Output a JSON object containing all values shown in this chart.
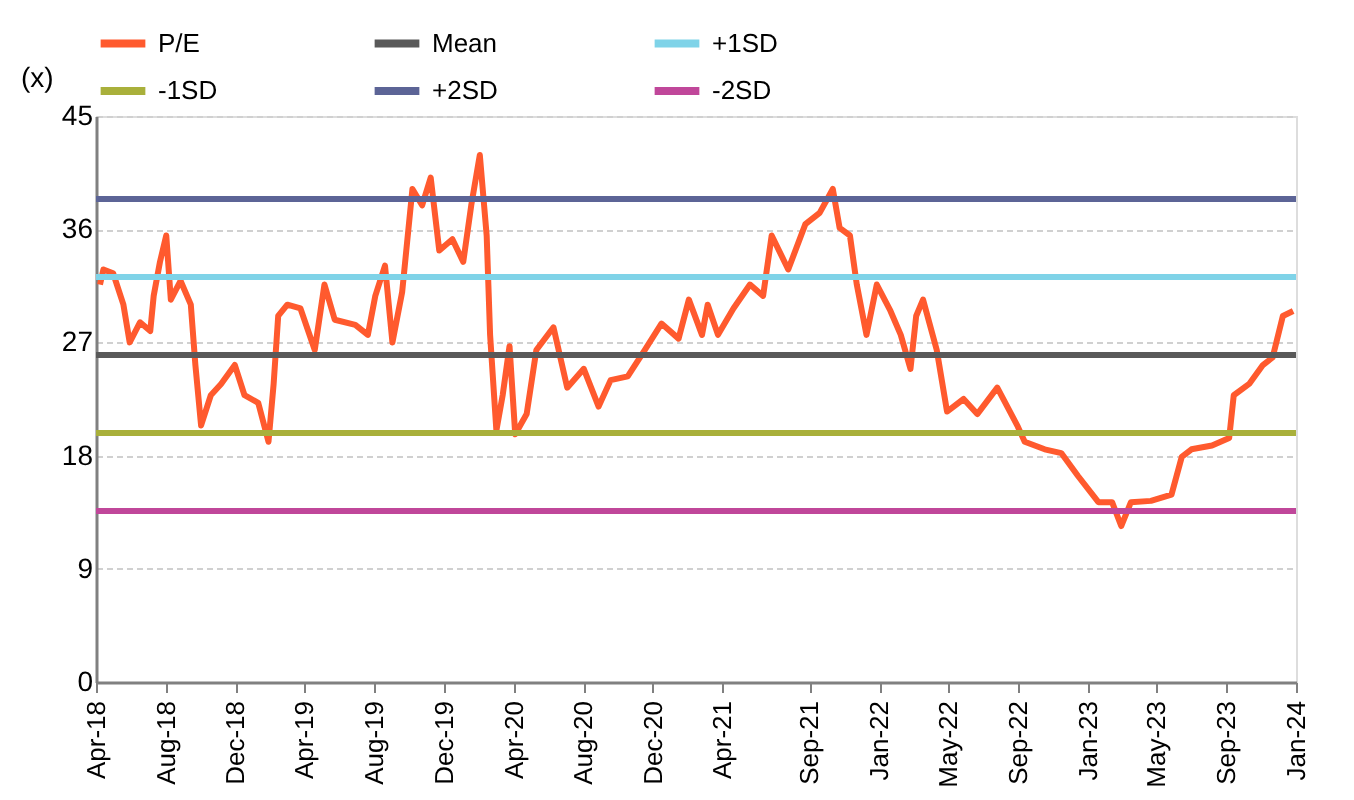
{
  "chart_data": {
    "type": "line",
    "ylabel": "(x)",
    "xlim": [
      "2018-04-01",
      "2024-01-01"
    ],
    "xticks": [
      {
        "value": "2018-04-01",
        "label": "Apr-18"
      },
      {
        "value": "2018-08-01",
        "label": "Aug-18"
      },
      {
        "value": "2018-12-01",
        "label": "Dec-18"
      },
      {
        "value": "2019-04-01",
        "label": "Apr-19"
      },
      {
        "value": "2019-08-01",
        "label": "Aug-19"
      },
      {
        "value": "2019-12-01",
        "label": "Dec-19"
      },
      {
        "value": "2020-04-01",
        "label": "Apr-20"
      },
      {
        "value": "2020-08-01",
        "label": "Aug-20"
      },
      {
        "value": "2020-12-01",
        "label": "Dec-20"
      },
      {
        "value": "2021-04-01",
        "label": "Apr-21"
      },
      {
        "value": "2021-09-01",
        "label": "Sep-21"
      },
      {
        "value": "2022-01-01",
        "label": "Jan-22"
      },
      {
        "value": "2022-05-01",
        "label": "May-22"
      },
      {
        "value": "2022-09-01",
        "label": "Sep-22"
      },
      {
        "value": "2023-01-01",
        "label": "Jan-23"
      },
      {
        "value": "2023-05-01",
        "label": "May-23"
      },
      {
        "value": "2023-09-01",
        "label": "Sep-23"
      },
      {
        "value": "2024-01-01",
        "label": "Jan-24"
      }
    ],
    "ylim": [
      0,
      45
    ],
    "yticks": [
      0,
      9,
      18,
      27,
      36,
      45
    ],
    "grid": "y",
    "legend": "top",
    "line_style": "solid",
    "series": [
      {
        "name": "P/E",
        "color": "#ff5a2e",
        "x": [
          "2018-04-08",
          "2018-04-14",
          "2018-05-01",
          "2018-05-19",
          "2018-05-30",
          "2018-06-17",
          "2018-07-05",
          "2018-07-11",
          "2018-07-22",
          "2018-08-02",
          "2018-08-10",
          "2018-08-27",
          "2018-09-14",
          "2018-09-22",
          "2018-10-02",
          "2018-10-19",
          "2018-11-06",
          "2018-11-30",
          "2018-12-17",
          "2019-01-10",
          "2019-01-28",
          "2019-02-06",
          "2019-02-14",
          "2019-03-02",
          "2019-03-25",
          "2019-04-19",
          "2019-05-06",
          "2019-05-24",
          "2019-06-29",
          "2019-07-21",
          "2019-08-03",
          "2019-08-20",
          "2019-09-02",
          "2019-09-19",
          "2019-10-07",
          "2019-10-24",
          "2019-11-08",
          "2019-11-23",
          "2019-12-16",
          "2020-01-04",
          "2020-01-18",
          "2020-02-02",
          "2020-02-14",
          "2020-02-20",
          "2020-03-02",
          "2020-03-13",
          "2020-03-25",
          "2020-04-04",
          "2020-04-24",
          "2020-05-11",
          "2020-06-10",
          "2020-07-04",
          "2020-08-02",
          "2020-08-28",
          "2020-09-18",
          "2020-10-18",
          "2020-11-17",
          "2020-12-16",
          "2021-01-15",
          "2021-02-02",
          "2021-02-25",
          "2021-03-07",
          "2021-03-25",
          "2021-04-21",
          "2021-05-20",
          "2021-06-12",
          "2021-06-27",
          "2021-07-26",
          "2021-08-25",
          "2021-09-19",
          "2021-10-12",
          "2021-10-24",
          "2021-11-11",
          "2021-11-23",
          "2021-12-10",
          "2021-12-28",
          "2022-01-21",
          "2022-02-08",
          "2022-02-25",
          "2022-03-07",
          "2022-03-19",
          "2022-04-12",
          "2022-04-30",
          "2022-05-29",
          "2022-06-22",
          "2022-07-27",
          "2022-09-01",
          "2022-09-13",
          "2022-10-18",
          "2022-11-16",
          "2022-12-15",
          "2023-01-20",
          "2023-02-13",
          "2023-03-01",
          "2023-03-18",
          "2023-04-22",
          "2023-05-28",
          "2023-06-15",
          "2023-07-02",
          "2023-08-07",
          "2023-09-06",
          "2023-09-14",
          "2023-10-11",
          "2023-11-04",
          "2023-11-21",
          "2023-12-09",
          "2023-12-27"
        ],
        "values": [
          31.6,
          32.8,
          32.5,
          30.0,
          27.0,
          28.6,
          27.9,
          30.7,
          33.4,
          35.5,
          30.4,
          31.9,
          30.0,
          25.2,
          20.4,
          22.8,
          23.7,
          25.2,
          22.8,
          22.2,
          19.1,
          23.7,
          29.1,
          30.0,
          29.7,
          26.4,
          31.6,
          28.8,
          28.4,
          27.6,
          30.7,
          33.1,
          27.0,
          31.0,
          39.2,
          37.9,
          40.1,
          34.3,
          35.2,
          33.4,
          37.9,
          41.9,
          35.5,
          27.6,
          20.0,
          22.8,
          26.7,
          19.7,
          21.3,
          26.4,
          28.2,
          23.4,
          24.9,
          21.9,
          24.0,
          24.3,
          26.4,
          28.5,
          27.3,
          30.4,
          27.6,
          30.0,
          27.6,
          29.7,
          31.6,
          30.7,
          35.5,
          32.8,
          36.4,
          37.3,
          39.2,
          36.1,
          35.5,
          31.6,
          27.6,
          31.6,
          29.5,
          27.6,
          24.9,
          29.1,
          30.4,
          26.4,
          21.5,
          22.5,
          21.3,
          23.4,
          20.3,
          19.1,
          18.5,
          18.2,
          16.4,
          14.3,
          14.3,
          12.4,
          14.3,
          14.4,
          14.9,
          17.9,
          18.5,
          18.8,
          19.4,
          22.8,
          23.7,
          25.2,
          25.8,
          29.1,
          29.5
        ]
      },
      {
        "name": "Mean",
        "color": "#595959",
        "x": [
          "2018-04-01",
          "2024-01-01"
        ],
        "values": [
          26.0,
          26.0
        ]
      },
      {
        "name": "+1SD",
        "color": "#7fd3e8",
        "x": [
          "2018-04-01",
          "2024-01-01"
        ],
        "values": [
          32.2,
          32.2
        ]
      },
      {
        "name": "-1SD",
        "color": "#a9b03b",
        "x": [
          "2018-04-01",
          "2024-01-01"
        ],
        "values": [
          19.8,
          19.8
        ]
      },
      {
        "name": "+2SD",
        "color": "#5c6496",
        "x": [
          "2018-04-01",
          "2024-01-01"
        ],
        "values": [
          38.4,
          38.4
        ]
      },
      {
        "name": "-2SD",
        "color": "#c0479a",
        "x": [
          "2018-04-01",
          "2024-01-01"
        ],
        "values": [
          13.6,
          13.6
        ]
      }
    ]
  }
}
